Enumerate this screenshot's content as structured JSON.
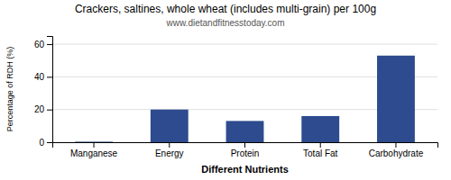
{
  "chart_data": {
    "type": "bar",
    "title": "Crackers, saltines, whole wheat (includes multi-grain) per 100g",
    "subtitle": "www.dietandfitnesstoday.com",
    "categories": [
      "Manganese",
      "Energy",
      "Protein",
      "Total Fat",
      "Carbohydrate"
    ],
    "values": [
      0.3,
      20.0,
      13.0,
      16.0,
      53.0
    ],
    "color": "#2d4b8e",
    "ylabel": "Percentage of RDH (%)",
    "xlabel": "Different Nutrients",
    "ylim": [
      0,
      65
    ],
    "yticks": [
      0,
      20,
      40,
      60
    ],
    "grid": true
  }
}
